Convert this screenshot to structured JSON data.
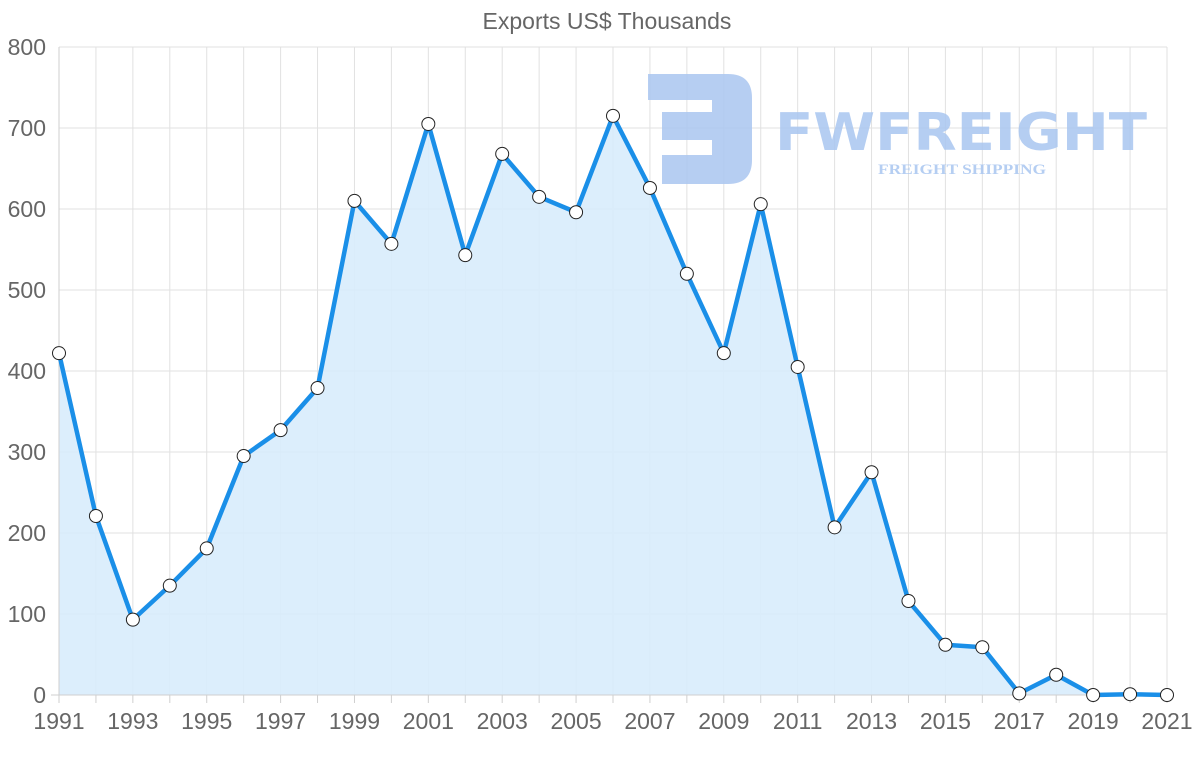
{
  "chart_data": {
    "type": "area",
    "title": "Exports US$ Thousands",
    "xlabel": "",
    "ylabel": "",
    "x": [
      1991,
      1992,
      1993,
      1994,
      1995,
      1996,
      1997,
      1998,
      1999,
      2000,
      2001,
      2002,
      2003,
      2004,
      2005,
      2006,
      2007,
      2008,
      2009,
      2010,
      2011,
      2012,
      2013,
      2014,
      2015,
      2016,
      2017,
      2018,
      2019,
      2020,
      2021
    ],
    "series": [
      {
        "name": "Exports US$ Thousands",
        "values": [
          422,
          221,
          93,
          135,
          181,
          295,
          327,
          379,
          610,
          557,
          705,
          543,
          668,
          615,
          596,
          715,
          626,
          520,
          422,
          606,
          405,
          207,
          275,
          116,
          62,
          59,
          2,
          25,
          0,
          1,
          0
        ]
      }
    ],
    "x_tick_labels": [
      "1991",
      "1993",
      "1995",
      "1997",
      "1999",
      "2001",
      "2003",
      "2005",
      "2007",
      "2009",
      "2011",
      "2013",
      "2015",
      "2017",
      "2019",
      "2021"
    ],
    "y_tick_labels": [
      "0",
      "100",
      "200",
      "300",
      "400",
      "500",
      "600",
      "700",
      "800"
    ],
    "ylim": [
      0,
      800
    ],
    "xlim": [
      1991,
      2021
    ],
    "grid": true,
    "legend": "none",
    "colors": {
      "line": "#1a8fe8",
      "fill": "#d8ecfc",
      "marker_fill": "#ffffff",
      "marker_stroke": "#222222"
    }
  },
  "watermark": {
    "brand": "FWFREIGHT",
    "tagline": "FREIGHT SHIPPING",
    "color": "#a9c6f0"
  }
}
